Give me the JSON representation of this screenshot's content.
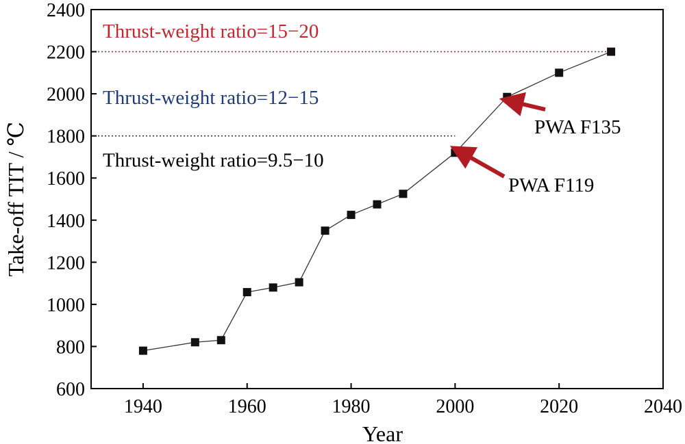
{
  "chart_data": {
    "type": "line",
    "xlabel": "Year",
    "ylabel": "Take-off  TIT / ℃",
    "xlim": [
      1930,
      2040
    ],
    "ylim": [
      600,
      2400
    ],
    "xticks": [
      1940,
      1960,
      1980,
      2000,
      2020,
      2040
    ],
    "yticks": [
      600,
      800,
      1000,
      1200,
      1400,
      1600,
      1800,
      2000,
      2200,
      2400
    ],
    "marker": "square",
    "grid": false,
    "series": [
      {
        "x": [
          1940,
          1950,
          1955,
          1960,
          1965,
          1970,
          1975,
          1980,
          1985,
          1990,
          2000,
          2010,
          2020,
          2030
        ],
        "y": [
          780,
          820,
          830,
          1058,
          1080,
          1105,
          1350,
          1425,
          1475,
          1525,
          1720,
          1985,
          2100,
          2200
        ]
      }
    ],
    "reference_lines": [
      {
        "y": 2200,
        "x_end": 2030,
        "color": "#c0282d",
        "style": "dotted"
      },
      {
        "y": 1800,
        "x_end": 2000,
        "color": "#1f3a7a",
        "style": "dotted"
      }
    ],
    "regions": [
      {
        "label": "Thrust-weight ratio=15−20",
        "color": "#c0282d"
      },
      {
        "label": "Thrust-weight ratio=12−15",
        "color": "#1f3a7a"
      },
      {
        "label": "Thrust-weight ratio=9.5−10",
        "color": "#000000"
      }
    ],
    "annotations": [
      {
        "label": "PWA F119",
        "x": 2000,
        "y": 1720,
        "arrow_color": "#b01c22"
      },
      {
        "label": "PWA F135",
        "x": 2010,
        "y": 1985,
        "arrow_color": "#b01c22"
      }
    ]
  }
}
